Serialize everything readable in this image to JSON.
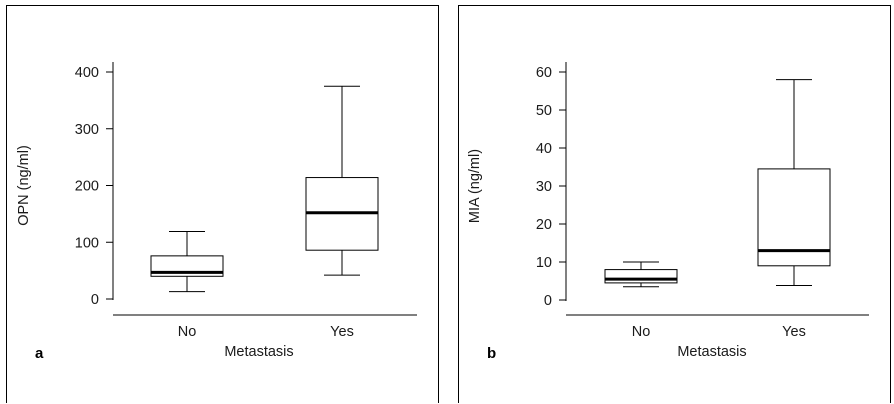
{
  "chart_data": [
    {
      "panel_label": "a",
      "type": "box",
      "categories": [
        "No",
        "Yes"
      ],
      "xlabel": "Metastasis",
      "ylabel": "OPN (ng/ml)",
      "ylim": [
        0,
        420
      ],
      "yticks": [
        0,
        100,
        200,
        300,
        400
      ],
      "grid": false,
      "boxes": [
        {
          "category": "No",
          "min": 13,
          "q1": 40,
          "median": 47,
          "q3": 76,
          "max": 119
        },
        {
          "category": "Yes",
          "min": 42,
          "q1": 86,
          "median": 152,
          "q3": 214,
          "max": 375
        }
      ]
    },
    {
      "panel_label": "b",
      "type": "box",
      "categories": [
        "No",
        "Yes"
      ],
      "xlabel": "Metastasis",
      "ylabel": "MIA (ng/ml)",
      "ylim": [
        0,
        62
      ],
      "yticks": [
        0,
        10,
        20,
        30,
        40,
        50,
        60
      ],
      "grid": false,
      "boxes": [
        {
          "category": "No",
          "min": 3.5,
          "q1": 4.5,
          "median": 5.5,
          "q3": 8,
          "max": 10
        },
        {
          "category": "Yes",
          "min": 3.8,
          "q1": 9,
          "median": 13,
          "q3": 34.5,
          "max": 58
        }
      ]
    }
  ]
}
